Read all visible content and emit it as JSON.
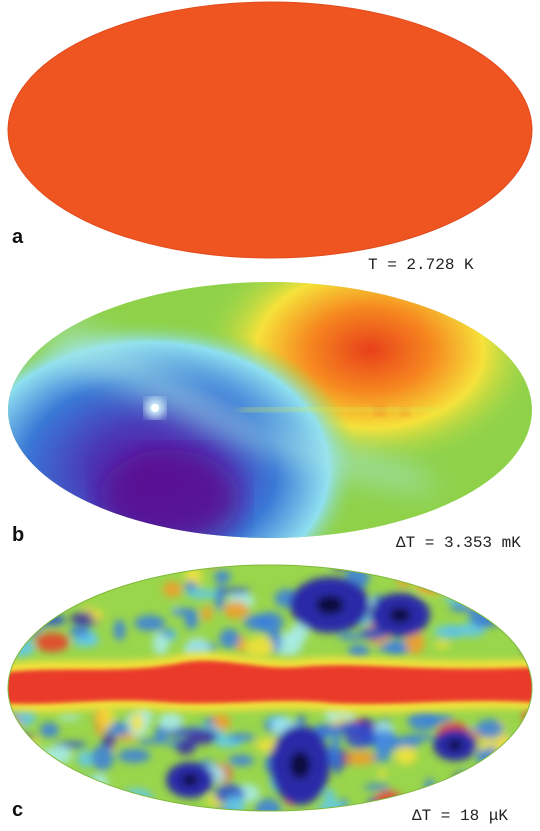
{
  "panels": [
    {
      "letter": "a",
      "caption": "T = 2.728 K"
    },
    {
      "letter": "b",
      "caption": "ΔT = 3.353 mK"
    },
    {
      "letter": "c",
      "caption": "ΔT = 18 μK"
    }
  ],
  "colors": {
    "uniform_map": "#ef5520",
    "background": "#ffffff"
  }
}
